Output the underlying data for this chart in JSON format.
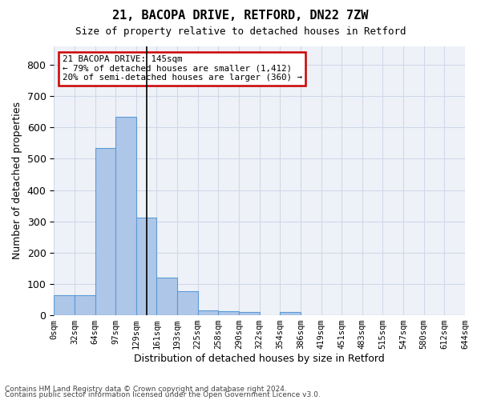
{
  "title1": "21, BACOPA DRIVE, RETFORD, DN22 7ZW",
  "title2": "Size of property relative to detached houses in Retford",
  "xlabel": "Distribution of detached houses by size in Retford",
  "ylabel": "Number of detached properties",
  "bin_labels": [
    "0sqm",
    "32sqm",
    "64sqm",
    "97sqm",
    "129sqm",
    "161sqm",
    "193sqm",
    "225sqm",
    "258sqm",
    "290sqm",
    "322sqm",
    "354sqm",
    "386sqm",
    "419sqm",
    "451sqm",
    "483sqm",
    "515sqm",
    "547sqm",
    "580sqm",
    "612sqm",
    "644sqm"
  ],
  "bar_heights": [
    65,
    65,
    535,
    635,
    313,
    120,
    78,
    15,
    12,
    10,
    0,
    10,
    0,
    0,
    0,
    0,
    0,
    0,
    0,
    0
  ],
  "bar_color": "#aec6e8",
  "bar_edge_color": "#5b9bd5",
  "annotation_text_line1": "21 BACOPA DRIVE: 145sqm",
  "annotation_text_line2": "← 79% of detached houses are smaller (1,412)",
  "annotation_text_line3": "20% of semi-detached houses are larger (360) →",
  "annotation_box_color": "#ffffff",
  "annotation_box_edge_color": "#cc0000",
  "vline_color": "#000000",
  "ylim": [
    0,
    860
  ],
  "yticks": [
    0,
    100,
    200,
    300,
    400,
    500,
    600,
    700,
    800
  ],
  "grid_color": "#d0d8e8",
  "bg_color": "#eef2f8",
  "footer1": "Contains HM Land Registry data © Crown copyright and database right 2024.",
  "footer2": "Contains public sector information licensed under the Open Government Licence v3.0."
}
